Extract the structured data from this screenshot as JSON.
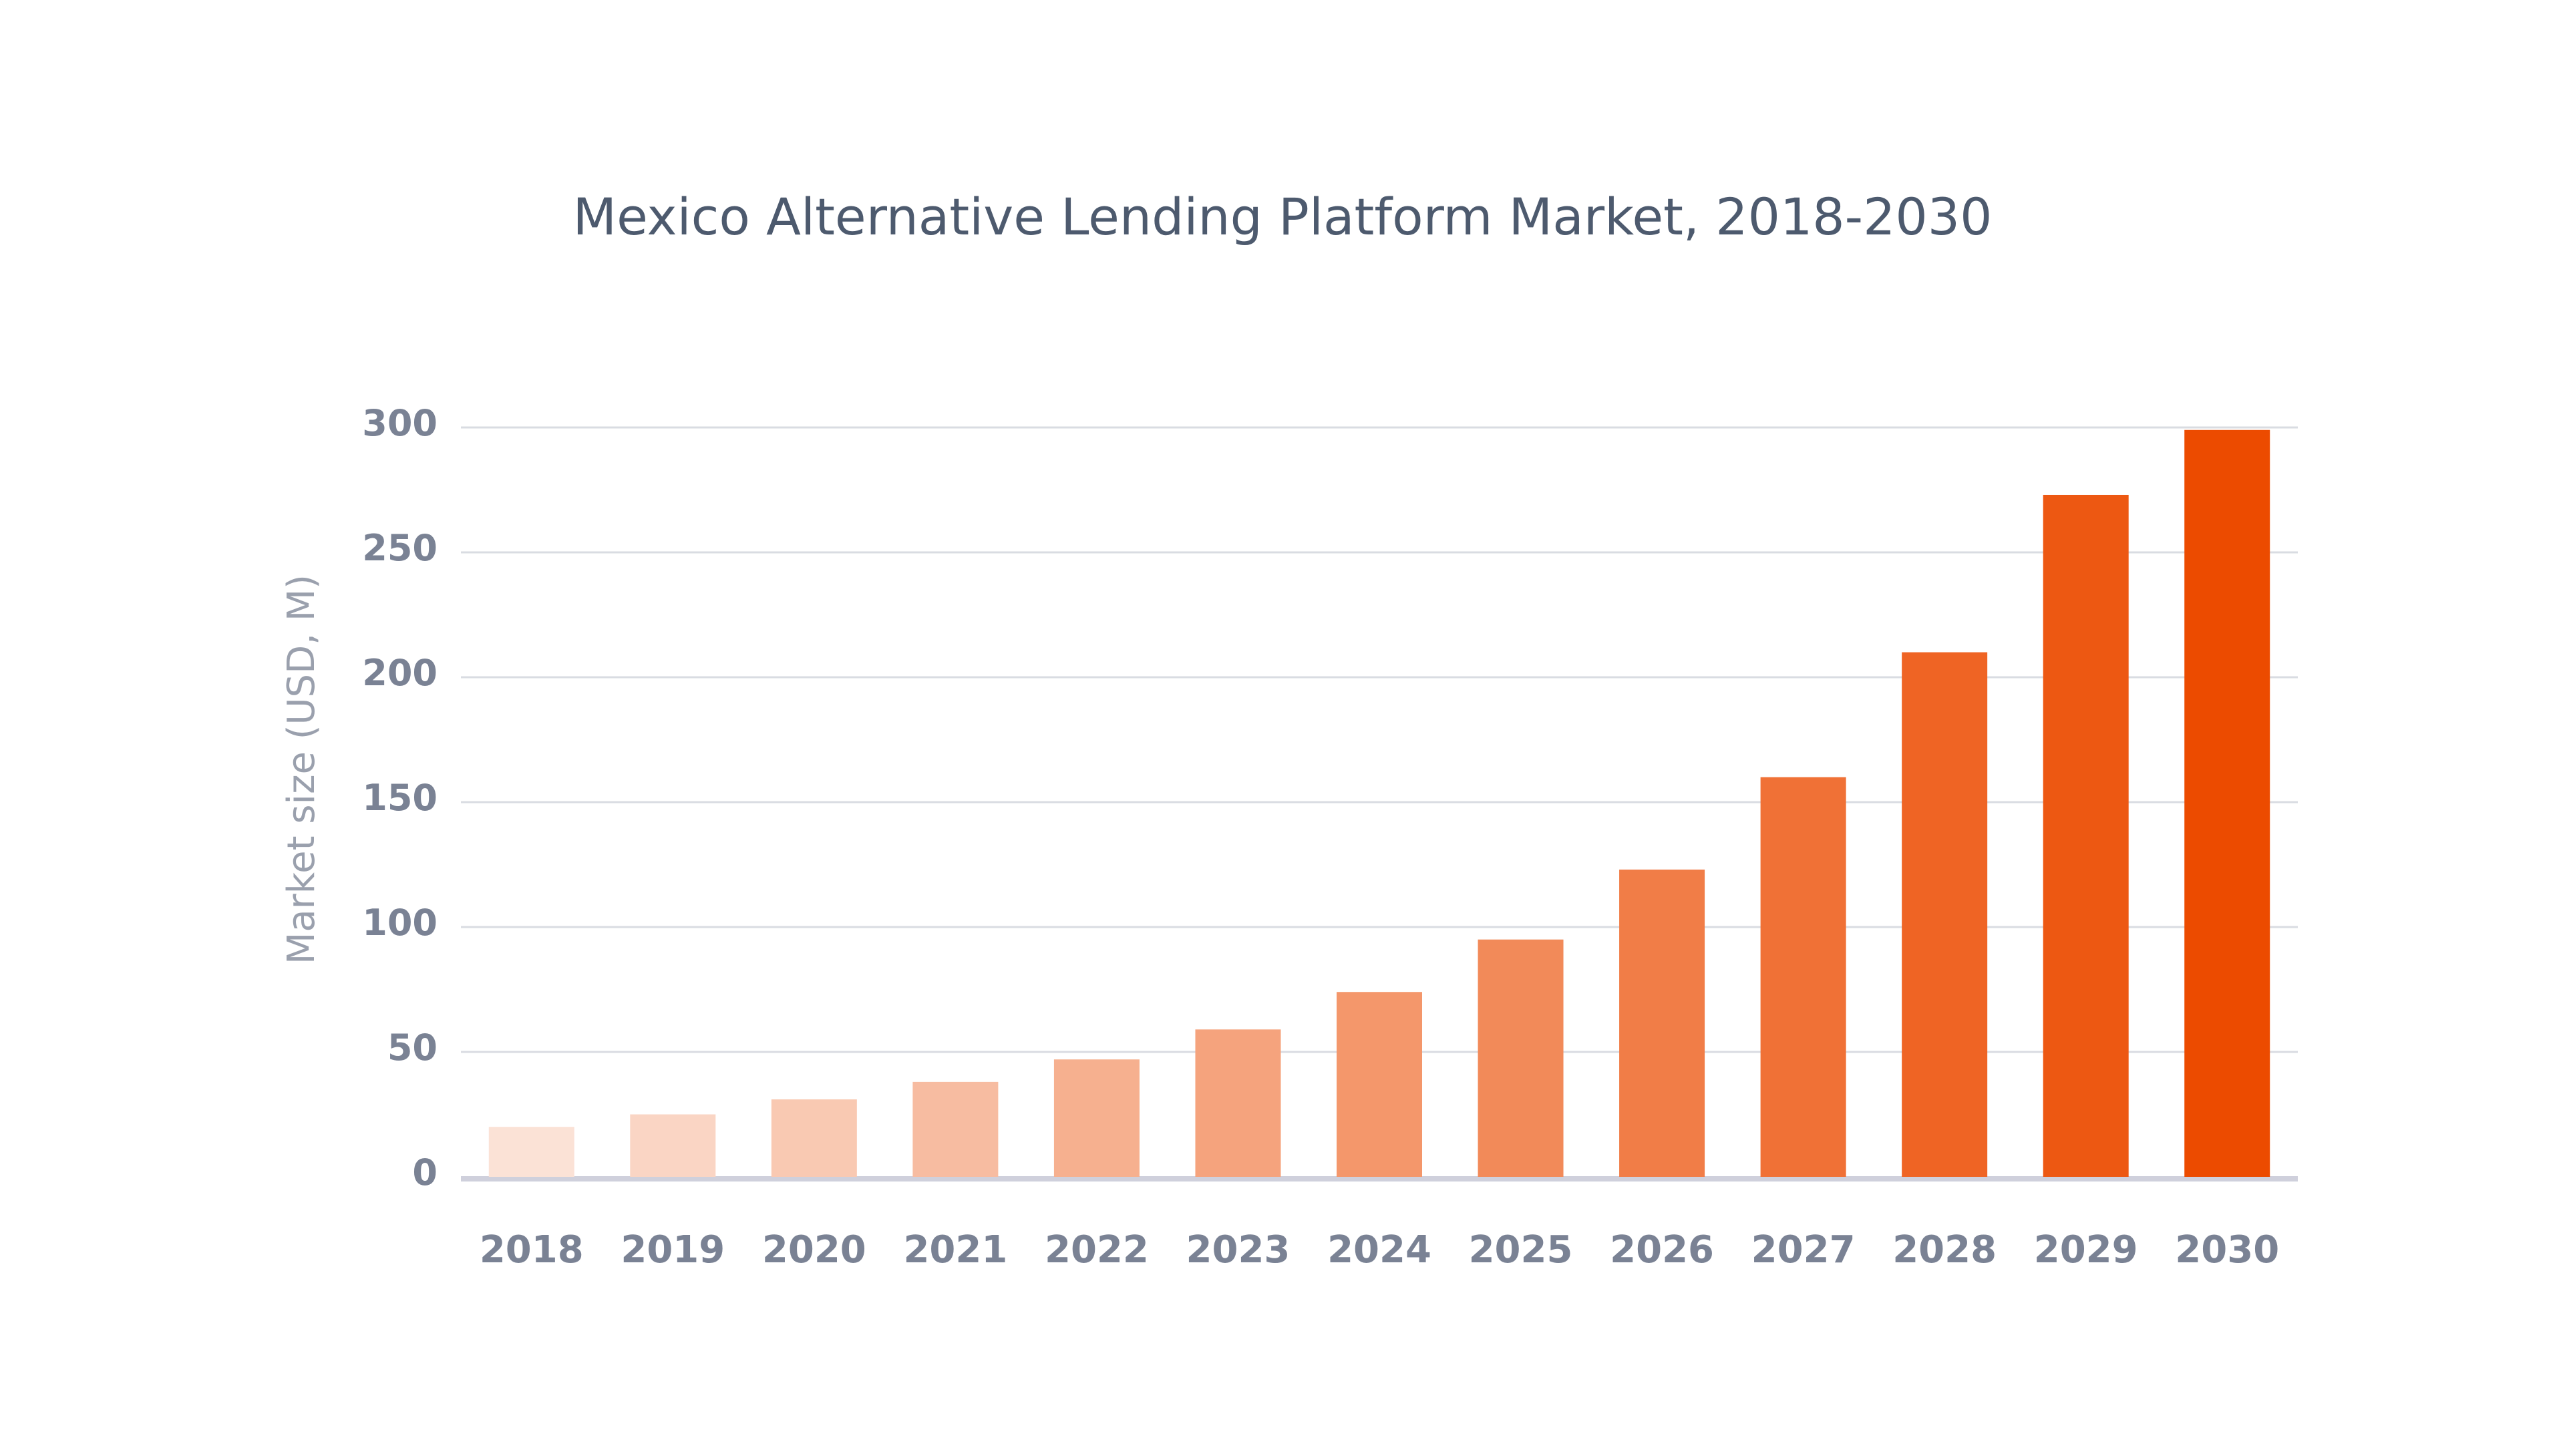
{
  "chart_data": {
    "type": "bar",
    "title": "Mexico Alternative Lending Platform Market, 2018-2030",
    "ylabel": "Market size (USD, M)",
    "xlabel": "",
    "categories": [
      "2018",
      "2019",
      "2020",
      "2021",
      "2022",
      "2023",
      "2024",
      "2025",
      "2026",
      "2027",
      "2028",
      "2029",
      "2030"
    ],
    "values": [
      20,
      25,
      31,
      38,
      47,
      59,
      74,
      95,
      123,
      160,
      210,
      273,
      299
    ],
    "yticks": [
      "0",
      "50",
      "100",
      "150",
      "200",
      "250",
      "300"
    ],
    "ylim": [
      0,
      300
    ],
    "grid": true,
    "legend": "none",
    "colors": {
      "bar_start": "#fbe2d6",
      "bar_end": "#ec4b00",
      "grid": "#d9dce2",
      "baseline": "#cfd0dc",
      "text": "#7a8294",
      "title": "#4d5a6e"
    }
  }
}
